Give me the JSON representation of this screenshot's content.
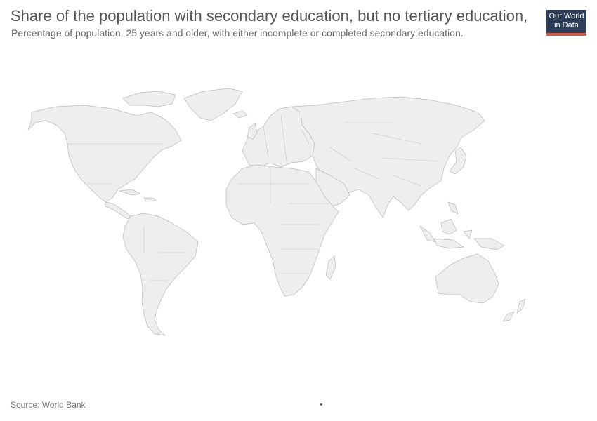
{
  "header": {
    "title": "Share of the population with secondary education, but no tertiary education,",
    "subtitle": "Percentage of population, 25 years and older, with either incomplete or completed secondary education."
  },
  "logo": {
    "line1": "Our World",
    "line2": "in Data"
  },
  "footer": {
    "source": "Source: World Bank"
  },
  "colors": {
    "land": "#eeeeee",
    "land_border": "#b9b9b9",
    "title": "#555555",
    "logo_background": "#2f3e58",
    "logo_accent": "#e0563d"
  }
}
